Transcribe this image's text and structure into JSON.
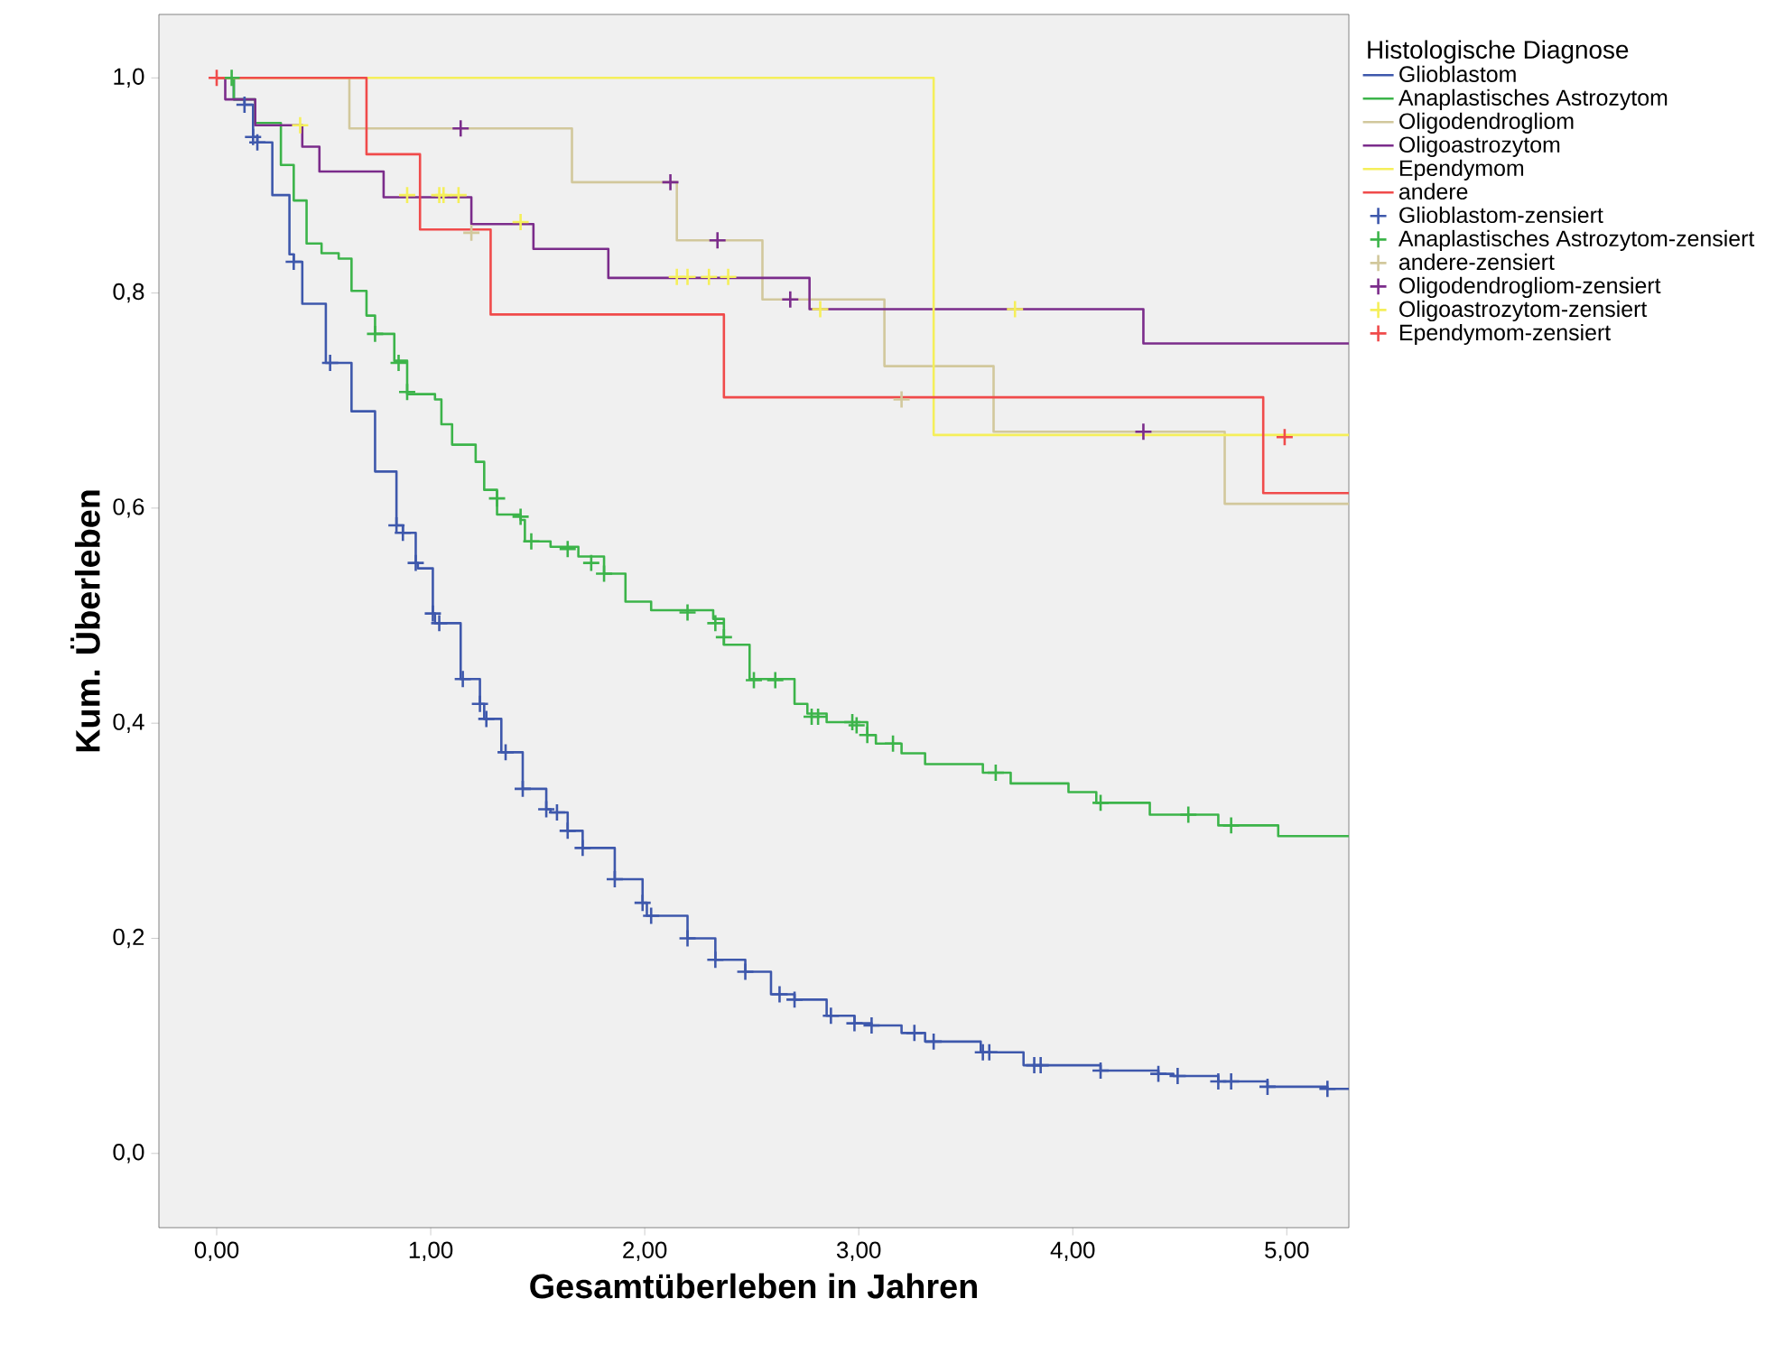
{
  "chart_data": {
    "type": "step",
    "xlabel": "Gesamtüberleben in Jahren",
    "ylabel": "Kum. Überleben",
    "legend_title": "Histologische Diagnose",
    "legend": "right",
    "xlim": [
      -0.27,
      5.29
    ],
    "ylim": [
      -0.069,
      1.059
    ],
    "xticks": [
      {
        "value": 0,
        "label": "0,00"
      },
      {
        "value": 1,
        "label": "1,00"
      },
      {
        "value": 2,
        "label": "2,00"
      },
      {
        "value": 3,
        "label": "3,00"
      },
      {
        "value": 4,
        "label": "4,00"
      },
      {
        "value": 5,
        "label": "5,00"
      }
    ],
    "yticks": [
      {
        "value": 0,
        "label": "0,0"
      },
      {
        "value": 0.2,
        "label": "0,2"
      },
      {
        "value": 0.4,
        "label": "0,4"
      },
      {
        "value": 0.6,
        "label": "0,6"
      },
      {
        "value": 0.8,
        "label": "0,8"
      },
      {
        "value": 1,
        "label": "1,0"
      }
    ],
    "series": [
      {
        "name": "Glioblastom",
        "marker": "none",
        "color": "#3e58ac",
        "x": [
          0,
          0.08,
          0.13,
          0.17,
          0.19,
          0.26,
          0.34,
          0.36,
          0.4,
          0.51,
          0.63,
          0.74,
          0.84,
          0.87,
          0.93,
          0.94,
          1.01,
          1.02,
          1.14,
          1.23,
          1.25,
          1.33,
          1.43,
          1.54,
          1.56,
          1.64,
          1.71,
          1.86,
          1.99,
          2.01,
          2.2,
          2.33,
          2.47,
          2.59,
          2.7,
          2.85,
          2.98,
          3.06,
          3.2,
          3.31,
          3.57,
          3.77,
          4.13,
          4.4,
          4.47,
          4.68,
          4.91,
          5.19,
          5.29
        ],
        "values": [
          1.0,
          0.98,
          0.975,
          0.945,
          0.94,
          0.891,
          0.836,
          0.829,
          0.79,
          0.735,
          0.69,
          0.634,
          0.584,
          0.577,
          0.549,
          0.544,
          0.502,
          0.493,
          0.441,
          0.418,
          0.404,
          0.373,
          0.339,
          0.32,
          0.317,
          0.3,
          0.284,
          0.255,
          0.233,
          0.221,
          0.2,
          0.18,
          0.169,
          0.148,
          0.143,
          0.128,
          0.121,
          0.119,
          0.112,
          0.104,
          0.094,
          0.082,
          0.077,
          0.074,
          0.072,
          0.067,
          0.062,
          0.06,
          0.06
        ]
      },
      {
        "name": "Anaplastisches Astrozytom",
        "marker": "none",
        "color": "#3cb44a",
        "x": [
          0,
          0.08,
          0.18,
          0.3,
          0.36,
          0.42,
          0.49,
          0.57,
          0.63,
          0.7,
          0.74,
          0.83,
          0.89,
          1.02,
          1.05,
          1.1,
          1.21,
          1.25,
          1.31,
          1.42,
          1.44,
          1.56,
          1.69,
          1.81,
          1.91,
          2.03,
          2.32,
          2.37,
          2.49,
          2.64,
          2.7,
          2.76,
          2.85,
          3.04,
          3.08,
          3.2,
          3.31,
          3.58,
          3.71,
          3.98,
          4.11,
          4.36,
          4.68,
          4.96,
          5.29
        ],
        "values": [
          1.0,
          0.98,
          0.958,
          0.919,
          0.886,
          0.846,
          0.837,
          0.832,
          0.802,
          0.779,
          0.762,
          0.737,
          0.706,
          0.701,
          0.678,
          0.659,
          0.643,
          0.617,
          0.594,
          0.589,
          0.569,
          0.564,
          0.555,
          0.539,
          0.513,
          0.505,
          0.497,
          0.473,
          0.441,
          0.441,
          0.418,
          0.409,
          0.401,
          0.389,
          0.381,
          0.372,
          0.362,
          0.354,
          0.344,
          0.336,
          0.326,
          0.315,
          0.305,
          0.295,
          0.295
        ]
      },
      {
        "name": "Oligodendrogliom",
        "marker": "none",
        "color": "#d2c89c",
        "x": [
          0,
          0.62,
          1.66,
          2.15,
          2.55,
          3.12,
          3.63,
          4.71,
          5.29
        ],
        "values": [
          1.0,
          0.953,
          0.903,
          0.849,
          0.794,
          0.732,
          0.671,
          0.604,
          0.604
        ]
      },
      {
        "name": "Oligoastrozytom",
        "marker": "none",
        "color": "#7b2c8b",
        "x": [
          0,
          0.04,
          0.18,
          0.4,
          0.48,
          0.78,
          1.19,
          1.48,
          1.83,
          2.77,
          4.33,
          5.29
        ],
        "values": [
          1.0,
          0.98,
          0.956,
          0.936,
          0.913,
          0.889,
          0.864,
          0.841,
          0.814,
          0.785,
          0.753,
          0.753
        ]
      },
      {
        "name": "Ependymom",
        "marker": "none",
        "color": "#f5ef5a",
        "x": [
          0,
          3.35,
          5.29
        ],
        "values": [
          1.0,
          0.668,
          0.668
        ]
      },
      {
        "name": "andere",
        "marker": "none",
        "color": "#f04b4b",
        "x": [
          0,
          0.7,
          0.95,
          1.28,
          2.37,
          4.89,
          5.29
        ],
        "values": [
          1.0,
          0.929,
          0.859,
          0.78,
          0.703,
          0.614,
          0.614
        ]
      },
      {
        "name": "Glioblastom-zensiert",
        "type": "scatter",
        "marker": "cross",
        "color": "#3e58ac",
        "x": [
          0.13,
          0.17,
          0.19,
          0.36,
          0.53,
          0.84,
          0.87,
          0.93,
          1.01,
          1.04,
          1.15,
          1.23,
          1.26,
          1.35,
          1.43,
          1.54,
          1.59,
          1.64,
          1.71,
          1.86,
          1.99,
          2.03,
          2.2,
          2.33,
          2.47,
          2.63,
          2.7,
          2.87,
          2.98,
          3.06,
          3.26,
          3.35,
          3.58,
          3.61,
          3.82,
          3.85,
          4.13,
          4.4,
          4.49,
          4.68,
          4.74,
          4.91,
          5.19
        ],
        "values": [
          0.975,
          0.945,
          0.94,
          0.829,
          0.735,
          0.584,
          0.577,
          0.549,
          0.502,
          0.493,
          0.441,
          0.418,
          0.404,
          0.373,
          0.339,
          0.32,
          0.317,
          0.3,
          0.284,
          0.255,
          0.233,
          0.221,
          0.2,
          0.18,
          0.169,
          0.148,
          0.143,
          0.128,
          0.121,
          0.119,
          0.112,
          0.104,
          0.094,
          0.094,
          0.082,
          0.082,
          0.077,
          0.074,
          0.072,
          0.067,
          0.067,
          0.062,
          0.06
        ]
      },
      {
        "name": "Anaplastisches Astrozytom-zensiert",
        "type": "scatter",
        "marker": "cross",
        "color": "#3cb44a",
        "x": [
          0.07,
          0.74,
          0.85,
          0.89,
          1.31,
          1.42,
          1.47,
          1.64,
          1.75,
          1.81,
          2.2,
          2.33,
          2.37,
          2.51,
          2.61,
          2.78,
          2.81,
          2.97,
          2.99,
          3.04,
          3.16,
          3.64,
          4.13,
          4.54,
          4.74
        ],
        "values": [
          1.0,
          0.762,
          0.735,
          0.708,
          0.609,
          0.592,
          0.569,
          0.562,
          0.549,
          0.539,
          0.503,
          0.493,
          0.48,
          0.44,
          0.44,
          0.406,
          0.406,
          0.401,
          0.398,
          0.389,
          0.381,
          0.354,
          0.326,
          0.315,
          0.305
        ]
      },
      {
        "name": "andere-zensiert",
        "type": "scatter",
        "marker": "cross",
        "color": "#d2c89c",
        "x": [
          1.19,
          3.2
        ],
        "values": [
          0.856,
          0.701
        ]
      },
      {
        "name": "Oligodendrogliom-zensiert",
        "type": "scatter",
        "marker": "cross",
        "color": "#7b2c8b",
        "x": [
          1.14,
          2.12,
          2.34,
          2.68,
          4.33
        ],
        "values": [
          0.953,
          0.903,
          0.849,
          0.794,
          0.671
        ]
      },
      {
        "name": "Oligoastrozytom-zensiert",
        "type": "scatter",
        "marker": "cross",
        "color": "#f5ef5a",
        "x": [
          0.39,
          0.89,
          1.04,
          1.06,
          1.13,
          1.42,
          2.15,
          2.2,
          2.3,
          2.39,
          2.82,
          3.73
        ],
        "values": [
          0.956,
          0.891,
          0.891,
          0.891,
          0.891,
          0.866,
          0.815,
          0.815,
          0.815,
          0.815,
          0.785,
          0.785
        ]
      },
      {
        "name": "Ependymom-zensiert",
        "type": "scatter",
        "marker": "cross",
        "color": "#f04b4b",
        "x": [
          0.0,
          4.99
        ],
        "values": [
          1.0,
          0.666
        ]
      }
    ]
  }
}
